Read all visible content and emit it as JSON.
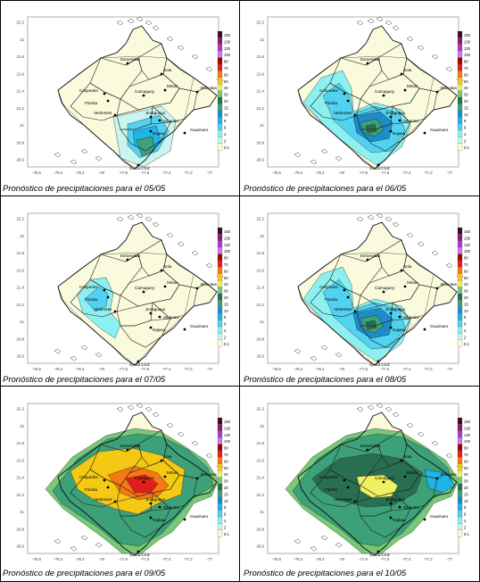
{
  "panels": [
    {
      "caption": "Pronóstico de precipitaciones para el 05/05",
      "scenario": "light"
    },
    {
      "caption": "Pronóstico de precipitaciones para el 06/05",
      "scenario": "mid"
    },
    {
      "caption": "Pronóstico de precipitaciones para el 07/05",
      "scenario": "lightwest"
    },
    {
      "caption": "Pronóstico de precipitaciones para el 08/05",
      "scenario": "mid"
    },
    {
      "caption": "Pronóstico de precipitaciones para el 09/05",
      "scenario": "heavy"
    },
    {
      "caption": "Pronóstico de precipitaciones para el 10/05",
      "scenario": "heavy2"
    }
  ],
  "places": [
    "Esmeralda",
    "Cespedes",
    "Florida",
    "Sola",
    "Minas",
    "Nuevitas",
    "Camaguey",
    "Vertientes",
    "Jimaguayu",
    "Sibanicu",
    "Najasa",
    "Guaimaro",
    "Santa Cruz"
  ],
  "x_ticks": [
    "-78.6",
    "-78.4",
    "-78.2",
    "-78",
    "-77.8",
    "-77.6",
    "-77.4",
    "-77.2",
    "-77"
  ],
  "y_ticks": [
    "22.2",
    "22",
    "21.8",
    "21.6",
    "21.4",
    "21.2",
    "21",
    "20.8",
    "20.6"
  ],
  "legend": {
    "labels": [
      "150",
      "130",
      "120",
      "100",
      "80",
      "70",
      "60",
      "50",
      "40",
      "30",
      "20",
      "15",
      "10",
      "8",
      "6",
      "4",
      "2",
      "0.1"
    ],
    "colors": [
      "#3a0a1e",
      "#8c1c6e",
      "#a63cc8",
      "#c878f0",
      "#a00000",
      "#e01e1e",
      "#f57814",
      "#f5c814",
      "#f0f064",
      "#78c878",
      "#286e50",
      "#3ca078",
      "#1e8cc8",
      "#1eb4e6",
      "#50d2f0",
      "#8cf0f0",
      "#c8f5f0",
      "#fafadc"
    ]
  }
}
